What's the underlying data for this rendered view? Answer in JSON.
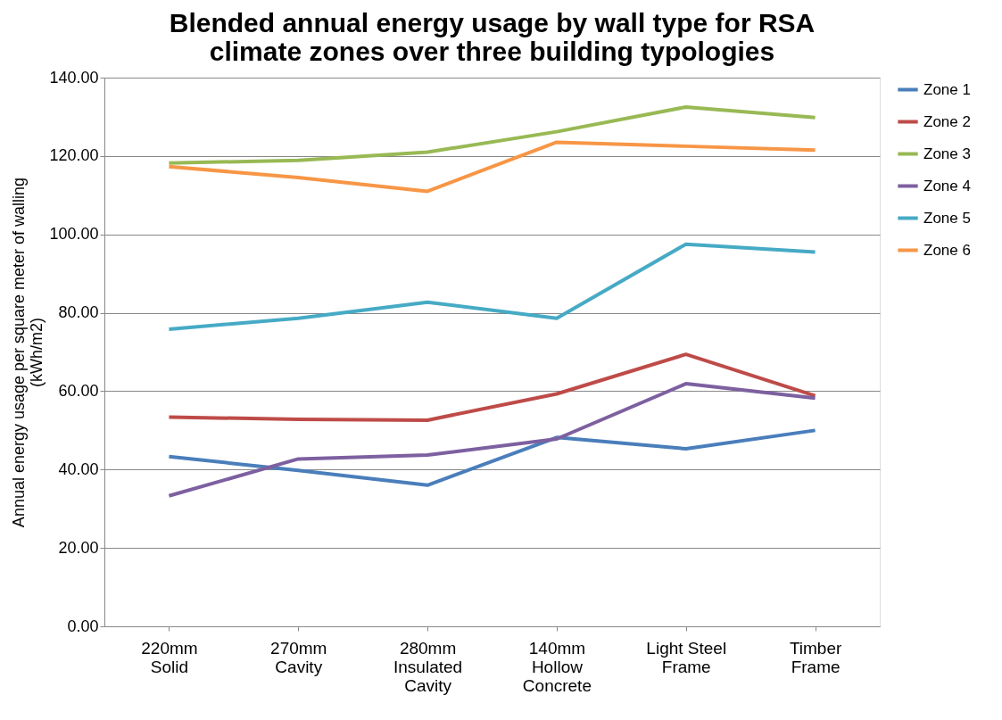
{
  "chart_data": {
    "type": "line",
    "title": "Blended annual energy usage by wall type for RSA\nclimate zones over three building typologies",
    "ylabel": "Annual energy usage per square meter of walling\n(kWh/m2)",
    "categories": [
      "220mm\nSolid",
      "270mm\nCavity",
      "280mm\nInsulated\nCavity",
      "140mm\nHollow\nConcrete",
      "Light Steel\nFrame",
      "Timber\nFrame"
    ],
    "series": [
      {
        "name": "Zone 1",
        "color": "#4a7ebb",
        "values": [
          43.3,
          39.8,
          36.0,
          48.2,
          45.3,
          50.0
        ]
      },
      {
        "name": "Zone 2",
        "color": "#be4b48",
        "values": [
          53.4,
          52.8,
          52.6,
          59.3,
          69.4,
          58.8
        ]
      },
      {
        "name": "Zone 3",
        "color": "#98b954",
        "values": [
          118.2,
          118.9,
          121.0,
          126.2,
          132.5,
          129.8
        ]
      },
      {
        "name": "Zone 4",
        "color": "#7d60a0",
        "values": [
          33.3,
          42.7,
          43.7,
          47.8,
          61.9,
          58.2
        ]
      },
      {
        "name": "Zone 5",
        "color": "#46aac5",
        "values": [
          75.8,
          78.6,
          82.7,
          78.6,
          97.5,
          95.5
        ]
      },
      {
        "name": "Zone 6",
        "color": "#f79646",
        "values": [
          117.3,
          114.5,
          111.0,
          123.5,
          122.5,
          121.5
        ]
      }
    ],
    "ylim": [
      0,
      140
    ],
    "yticks": [
      {
        "value": 0,
        "label": "0.00"
      },
      {
        "value": 20,
        "label": "20.00"
      },
      {
        "value": 40,
        "label": "40.00"
      },
      {
        "value": 60,
        "label": "60.00"
      },
      {
        "value": 80,
        "label": "80.00"
      },
      {
        "value": 100,
        "label": "100.00"
      },
      {
        "value": 120,
        "label": "120.00"
      },
      {
        "value": 140,
        "label": "140.00"
      }
    ],
    "grid": "y",
    "legend": "right",
    "marker": "none",
    "line_style": "solid"
  }
}
